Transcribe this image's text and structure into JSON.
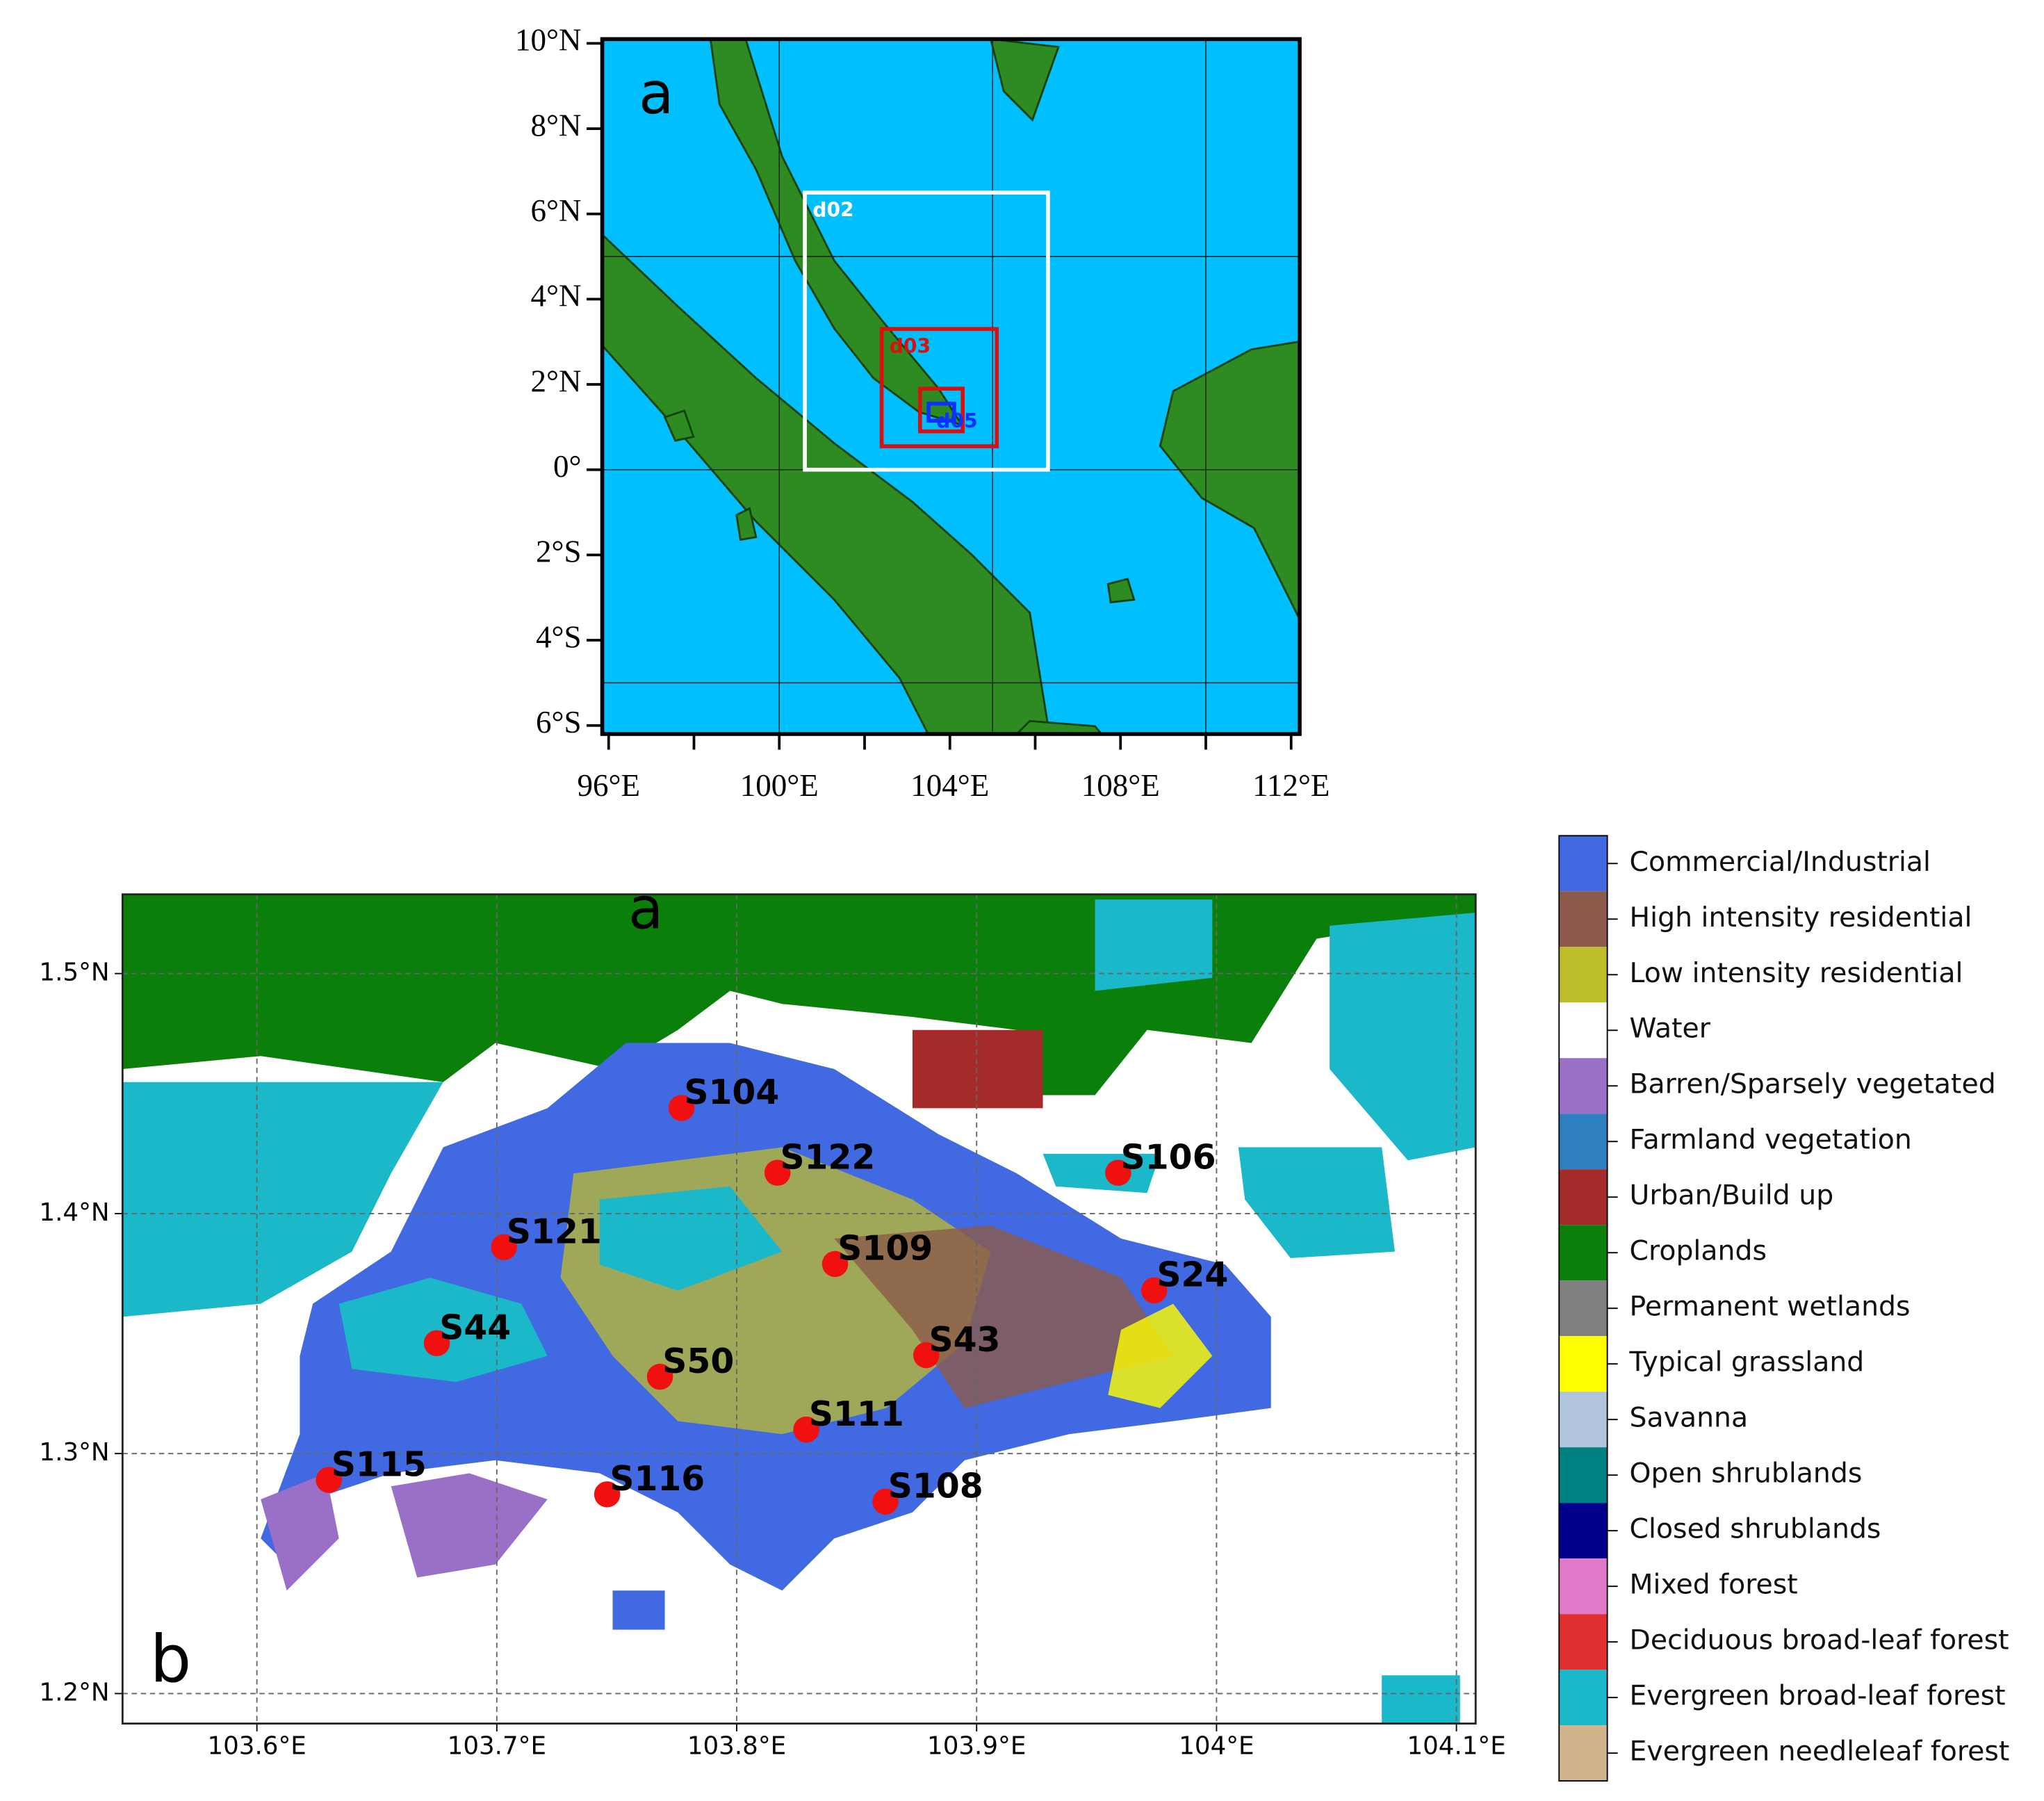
{
  "chart_data": [
    {
      "type": "map",
      "panel_label": "a",
      "xlim": [
        95.85,
        112.2
      ],
      "ylim": [
        -6.2,
        10.1
      ],
      "xticks": [
        {
          "value": 96,
          "label": "96°E"
        },
        {
          "value": 100,
          "label": "100°E"
        },
        {
          "value": 104,
          "label": "104°E"
        },
        {
          "value": 108,
          "label": "108°E"
        },
        {
          "value": 112,
          "label": "112°E"
        }
      ],
      "xminor": [
        98,
        102,
        106,
        110
      ],
      "yticks": [
        {
          "value": 10,
          "label": "10°N"
        },
        {
          "value": 8,
          "label": "8°N"
        },
        {
          "value": 6,
          "label": "6°N"
        },
        {
          "value": 4,
          "label": "4°N"
        },
        {
          "value": 2,
          "label": "2°N"
        },
        {
          "value": 0,
          "label": "0°"
        },
        {
          "value": -2,
          "label": "2°S"
        },
        {
          "value": -4,
          "label": "4°S"
        },
        {
          "value": -6,
          "label": "6°S"
        }
      ],
      "grid_lon": [
        100,
        105,
        110
      ],
      "grid_lat": [
        -5,
        0,
        5
      ],
      "domains": [
        {
          "name": "d02",
          "color": "#ffffff",
          "lon": [
            100.6,
            106.3
          ],
          "lat": [
            0,
            6.5
          ]
        },
        {
          "name": "d03",
          "color": "#d81010",
          "lon": [
            102.4,
            105.1
          ],
          "lat": [
            0.55,
            3.3
          ]
        },
        {
          "color": "#d81010",
          "lon": [
            103.3,
            104.3
          ],
          "lat": [
            0.9,
            1.9
          ]
        },
        {
          "name": "d05",
          "color": "#1030ff",
          "lon": [
            103.5,
            104.1
          ],
          "lat": [
            1.15,
            1.55
          ]
        }
      ]
    },
    {
      "type": "map",
      "title": "a",
      "panel_label": "b",
      "xlim": [
        103.544,
        104.108
      ],
      "ylim": [
        1.1875,
        1.533
      ],
      "xticks": [
        {
          "value": 103.6,
          "label": "103.6°E"
        },
        {
          "value": 103.7,
          "label": "103.7°E"
        },
        {
          "value": 103.8,
          "label": "103.8°E"
        },
        {
          "value": 103.9,
          "label": "103.9°E"
        },
        {
          "value": 104,
          "label": "104°E"
        },
        {
          "value": 104.1,
          "label": "104.1°E"
        }
      ],
      "yticks": [
        {
          "value": 1.5,
          "label": "1.5°N"
        },
        {
          "value": 1.4,
          "label": "1.4°N"
        },
        {
          "value": 1.3,
          "label": "1.3°N"
        },
        {
          "value": 1.2,
          "label": "1.2°N"
        }
      ],
      "grid": true,
      "stations": {
        "color": "#f01010",
        "names": [
          "S104",
          "S122",
          "S106",
          "S121",
          "S109",
          "S24",
          "S44",
          "S43",
          "S50",
          "S111",
          "S115",
          "S116",
          "S108"
        ],
        "lon": [
          103.777,
          103.817,
          103.959,
          103.703,
          103.841,
          103.974,
          103.675,
          103.879,
          103.768,
          103.829,
          103.63,
          103.746,
          103.862
        ],
        "lat": [
          1.444,
          1.417,
          1.417,
          1.386,
          1.379,
          1.368,
          1.346,
          1.341,
          1.332,
          1.31,
          1.289,
          1.283,
          1.28
        ]
      },
      "legend": [
        {
          "name": "Commercial/Industrial",
          "color": "#4169e1"
        },
        {
          "name": "High intensity residential",
          "color": "#8b5a4a"
        },
        {
          "name": "Low intensity residential",
          "color": "#bdbd2a"
        },
        {
          "name": "Water",
          "color": "#ffffff"
        },
        {
          "name": "Barren/Sparsely vegetated",
          "color": "#9a6fc8"
        },
        {
          "name": "Farmland vegetation",
          "color": "#2d7fbf"
        },
        {
          "name": "Urban/Build up",
          "color": "#a52a2a"
        },
        {
          "name": "Croplands",
          "color": "#0a7f0a"
        },
        {
          "name": "Permanent wetlands",
          "color": "#808080"
        },
        {
          "name": "Typical grassland",
          "color": "#ffff00"
        },
        {
          "name": "Savanna",
          "color": "#b0c4de"
        },
        {
          "name": "Open shrublands",
          "color": "#008080"
        },
        {
          "name": "Closed shrublands",
          "color": "#00008b"
        },
        {
          "name": "Mixed forest",
          "color": "#e07ac8"
        },
        {
          "name": "Deciduous broad-leaf forest",
          "color": "#e03030"
        },
        {
          "name": "Evergreen broad-leaf forest",
          "color": "#1ab8c8"
        },
        {
          "name": "Evergreen needleleaf forest",
          "color": "#d2b48c"
        }
      ]
    }
  ]
}
